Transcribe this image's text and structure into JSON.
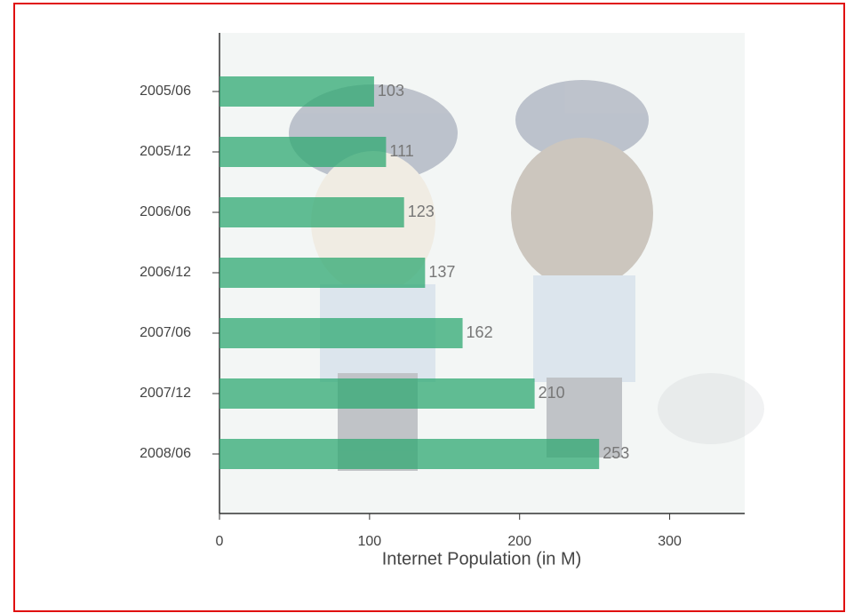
{
  "chart_data": {
    "type": "bar",
    "orientation": "horizontal",
    "categories": [
      "2005/06",
      "2005/12",
      "2006/06",
      "2006/12",
      "2007/06",
      "2007/12",
      "2008/06"
    ],
    "values": [
      103,
      111,
      123,
      137,
      162,
      210,
      253
    ],
    "color": "#2fa872",
    "x_label": "Internet Population (in M)",
    "xlim": [
      0,
      350
    ],
    "xticks": [
      0,
      100,
      200,
      300
    ]
  }
}
